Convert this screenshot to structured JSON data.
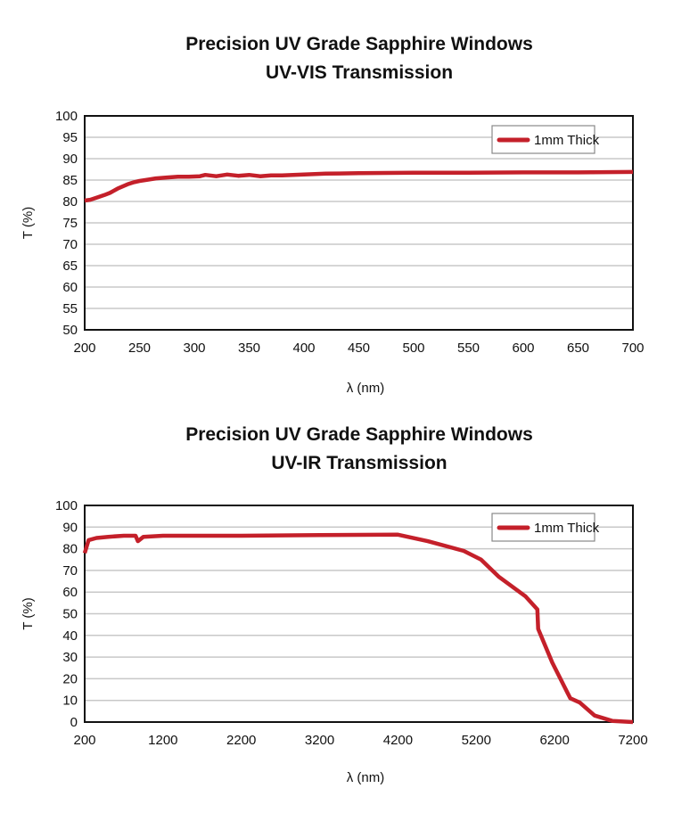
{
  "chart_data": [
    {
      "type": "line",
      "title": "Precision UV Grade Sapphire Windows",
      "subtitle": "UV-VIS Transmission",
      "xlabel": "λ (nm)",
      "ylabel": "T (%)",
      "xlim": [
        200,
        700
      ],
      "ylim": [
        50,
        100
      ],
      "xticks": [
        200,
        250,
        300,
        350,
        400,
        450,
        500,
        550,
        600,
        650,
        700
      ],
      "yticks": [
        50,
        55,
        60,
        65,
        70,
        75,
        80,
        85,
        90,
        95,
        100
      ],
      "grid": "horizontal",
      "legend_position": "top-right",
      "series": [
        {
          "name": "1mm Thick",
          "color": "#c4202a",
          "x": [
            200,
            205,
            212,
            218,
            223,
            230,
            239,
            245,
            250,
            258,
            265,
            275,
            285,
            295,
            305,
            310,
            320,
            330,
            340,
            350,
            360,
            370,
            380,
            400,
            420,
            450,
            500,
            550,
            600,
            650,
            700
          ],
          "y": [
            80.2,
            80.4,
            81.0,
            81.5,
            82.0,
            83.0,
            84.0,
            84.5,
            84.8,
            85.1,
            85.4,
            85.6,
            85.8,
            85.8,
            85.9,
            86.2,
            85.9,
            86.3,
            86.0,
            86.2,
            85.9,
            86.1,
            86.1,
            86.3,
            86.5,
            86.6,
            86.7,
            86.7,
            86.8,
            86.8,
            86.9
          ]
        }
      ]
    },
    {
      "type": "line",
      "title": "Precision UV Grade Sapphire Windows",
      "subtitle": "UV-IR Transmission",
      "xlabel": "λ (nm)",
      "ylabel": "T (%)",
      "xlim": [
        200,
        7200
      ],
      "ylim": [
        0,
        100
      ],
      "xticks": [
        200,
        1200,
        2200,
        3200,
        4200,
        5200,
        6200,
        7200
      ],
      "yticks": [
        0,
        10,
        20,
        30,
        40,
        50,
        60,
        70,
        80,
        90,
        100
      ],
      "grid": "horizontal",
      "legend_position": "top-right",
      "series": [
        {
          "name": "1mm Thick",
          "color": "#c4202a",
          "x": [
            200,
            250,
            350,
            500,
            700,
            850,
            880,
            950,
            1200,
            2200,
            3200,
            4200,
            4580,
            5040,
            5260,
            5490,
            5830,
            5980,
            5990,
            6170,
            6400,
            6520,
            6710,
            6940,
            7200
          ],
          "y": [
            78,
            84,
            85,
            85.5,
            86,
            86,
            83.5,
            85.5,
            86,
            86,
            86.3,
            86.5,
            83.5,
            79,
            75,
            67,
            58,
            52,
            43,
            27.5,
            11,
            9,
            3,
            0.5,
            0
          ]
        }
      ]
    }
  ]
}
